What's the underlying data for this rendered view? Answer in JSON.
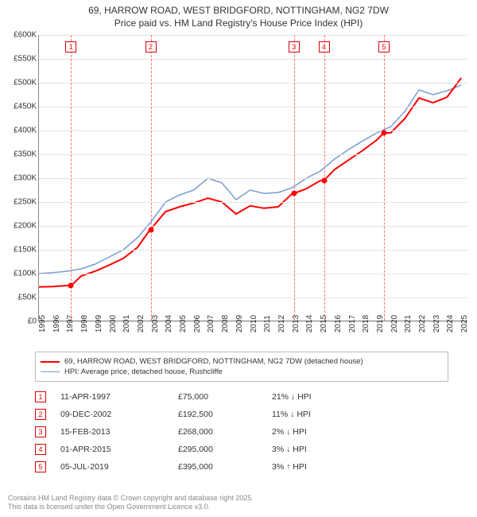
{
  "title": {
    "line1": "69, HARROW ROAD, WEST BRIDGFORD, NOTTINGHAM, NG2 7DW",
    "line2": "Price paid vs. HM Land Registry's House Price Index (HPI)"
  },
  "chart": {
    "type": "line",
    "background_color": "#ffffff",
    "grid_color": "#e4e4e4",
    "xlim": [
      1995,
      2025.5
    ],
    "ylim": [
      0,
      600000
    ],
    "ytick_step": 50000,
    "yticks": [
      {
        "v": 0,
        "label": "£0"
      },
      {
        "v": 50000,
        "label": "£50K"
      },
      {
        "v": 100000,
        "label": "£100K"
      },
      {
        "v": 150000,
        "label": "£150K"
      },
      {
        "v": 200000,
        "label": "£200K"
      },
      {
        "v": 250000,
        "label": "£250K"
      },
      {
        "v": 300000,
        "label": "£300K"
      },
      {
        "v": 350000,
        "label": "£350K"
      },
      {
        "v": 400000,
        "label": "£400K"
      },
      {
        "v": 450000,
        "label": "£450K"
      },
      {
        "v": 500000,
        "label": "£500K"
      },
      {
        "v": 550000,
        "label": "£550K"
      },
      {
        "v": 600000,
        "label": "£600K"
      }
    ],
    "xticks": [
      1995,
      1996,
      1997,
      1998,
      1999,
      2000,
      2001,
      2002,
      2003,
      2004,
      2005,
      2006,
      2007,
      2008,
      2009,
      2010,
      2011,
      2012,
      2013,
      2014,
      2015,
      2016,
      2017,
      2018,
      2019,
      2020,
      2021,
      2022,
      2023,
      2024,
      2025
    ],
    "series": {
      "hpi": {
        "label": "HPI: Average price, detached house, Rushcliffe",
        "color": "#7a9cd3",
        "line_width": 1.5,
        "data": [
          [
            1995,
            100000
          ],
          [
            1996,
            102000
          ],
          [
            1997,
            105000
          ],
          [
            1998,
            110000
          ],
          [
            1999,
            120000
          ],
          [
            2000,
            135000
          ],
          [
            2001,
            150000
          ],
          [
            2002,
            175000
          ],
          [
            2003,
            210000
          ],
          [
            2004,
            250000
          ],
          [
            2005,
            265000
          ],
          [
            2006,
            275000
          ],
          [
            2007,
            300000
          ],
          [
            2008,
            290000
          ],
          [
            2009,
            255000
          ],
          [
            2010,
            275000
          ],
          [
            2011,
            268000
          ],
          [
            2012,
            270000
          ],
          [
            2013,
            280000
          ],
          [
            2014,
            300000
          ],
          [
            2015,
            315000
          ],
          [
            2016,
            340000
          ],
          [
            2017,
            360000
          ],
          [
            2018,
            378000
          ],
          [
            2019,
            395000
          ],
          [
            2020,
            408000
          ],
          [
            2021,
            440000
          ],
          [
            2022,
            485000
          ],
          [
            2023,
            475000
          ],
          [
            2024,
            483000
          ],
          [
            2025,
            495000
          ]
        ]
      },
      "property": {
        "label": "69, HARROW ROAD, WEST BRIDGFORD, NOTTINGHAM, NG2 7DW (detached house)",
        "color": "#ff0000",
        "line_width": 2,
        "data": [
          [
            1995,
            72000
          ],
          [
            1996,
            73000
          ],
          [
            1997,
            75000
          ],
          [
            1997.3,
            75000
          ],
          [
            1998,
            95000
          ],
          [
            1999,
            105000
          ],
          [
            2000,
            118000
          ],
          [
            2001,
            132000
          ],
          [
            2002,
            155000
          ],
          [
            2002.9,
            192500
          ],
          [
            2003,
            195000
          ],
          [
            2004,
            230000
          ],
          [
            2005,
            240000
          ],
          [
            2006,
            248000
          ],
          [
            2007,
            258000
          ],
          [
            2008,
            250000
          ],
          [
            2009,
            225000
          ],
          [
            2010,
            242000
          ],
          [
            2011,
            237000
          ],
          [
            2012,
            240000
          ],
          [
            2013,
            268000
          ],
          [
            2013.12,
            268000
          ],
          [
            2014,
            278000
          ],
          [
            2015,
            295000
          ],
          [
            2015.25,
            295000
          ],
          [
            2016,
            318000
          ],
          [
            2017,
            338000
          ],
          [
            2018,
            358000
          ],
          [
            2019,
            380000
          ],
          [
            2019.5,
            395000
          ],
          [
            2020,
            395000
          ],
          [
            2021,
            425000
          ],
          [
            2022,
            468000
          ],
          [
            2023,
            458000
          ],
          [
            2024,
            470000
          ],
          [
            2025,
            510000
          ]
        ]
      }
    },
    "sales": [
      {
        "idx": 1,
        "year": 1997.28,
        "price": 75000
      },
      {
        "idx": 2,
        "year": 2002.94,
        "price": 192500
      },
      {
        "idx": 3,
        "year": 2013.12,
        "price": 268000
      },
      {
        "idx": 4,
        "year": 2015.25,
        "price": 295000
      },
      {
        "idx": 5,
        "year": 2019.51,
        "price": 395000
      }
    ],
    "sale_line_color": "#ff7070",
    "sale_marker_border": "#d00000",
    "sale_dot_color": "#ff0000"
  },
  "sales_table": [
    {
      "idx": "1",
      "date": "11-APR-1997",
      "price": "£75,000",
      "delta": "21% ↓ HPI"
    },
    {
      "idx": "2",
      "date": "09-DEC-2002",
      "price": "£192,500",
      "delta": "11% ↓ HPI"
    },
    {
      "idx": "3",
      "date": "15-FEB-2013",
      "price": "£268,000",
      "delta": "2% ↓ HPI"
    },
    {
      "idx": "4",
      "date": "01-APR-2015",
      "price": "£295,000",
      "delta": "3% ↓ HPI"
    },
    {
      "idx": "5",
      "date": "05-JUL-2019",
      "price": "£395,000",
      "delta": "3% ↑ HPI"
    }
  ],
  "footer": {
    "line1": "Contains HM Land Registry data © Crown copyright and database right 2025.",
    "line2": "This data is licensed under the Open Government Licence v3.0."
  },
  "typography": {
    "title_fontsize": 12,
    "axis_fontsize": 10,
    "legend_fontsize": 9.5,
    "table_fontsize": 10.5,
    "footer_fontsize": 9
  }
}
